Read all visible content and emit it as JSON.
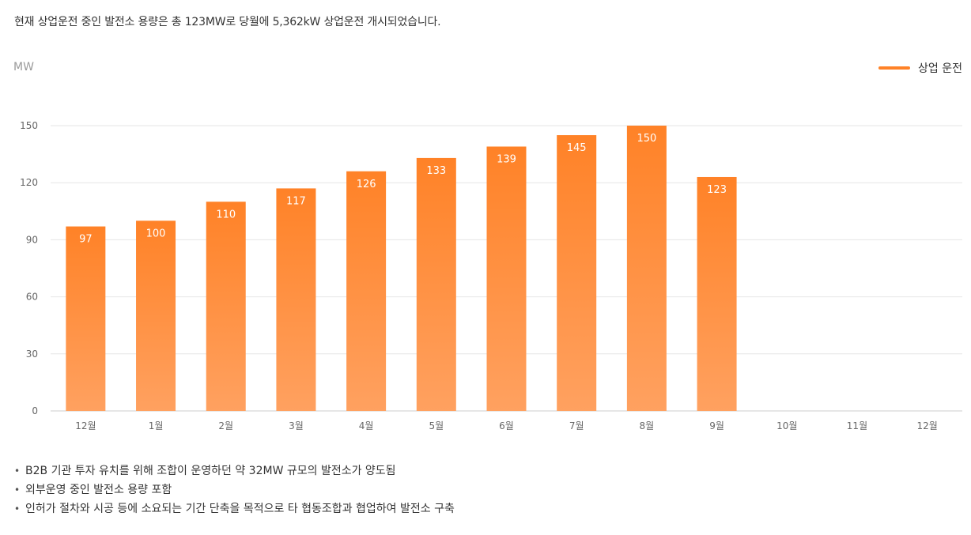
{
  "header": {
    "summary": "현재 상업운전 중인 발전소 용량은 총 123MW로 당월에 5,362kW 상업운전 개시되었습니다."
  },
  "colors": {
    "bar_top": "#ff8227",
    "bar_bottom": "#ffa160",
    "grid": "#e6e6e6",
    "axis_text": "#666666",
    "value_text": "#ffffff"
  },
  "chart_data": {
    "type": "bar",
    "ylabel": "MW",
    "categories": [
      "12월",
      "1월",
      "2월",
      "3월",
      "4월",
      "5월",
      "6월",
      "7월",
      "8월",
      "9월",
      "10월",
      "11월",
      "12월"
    ],
    "series": [
      {
        "name": "상업 운전",
        "values": [
          97,
          100,
          110,
          117,
          126,
          133,
          139,
          145,
          150,
          123,
          null,
          null,
          null
        ]
      }
    ],
    "yticks": [
      0,
      30,
      60,
      90,
      120,
      150
    ],
    "ylim": [
      0,
      150
    ],
    "grid": true,
    "legend_position": "top-right",
    "data_labels": true
  },
  "notes": [
    "B2B 기관 투자 유치를 위해 조합이 운영하던 약 32MW 규모의 발전소가 양도됨",
    "외부운영 중인 발전소 용량 포함",
    "인허가 절차와 시공 등에 소요되는 기간 단축을 목적으로 타 협동조합과 협업하여 발전소 구축"
  ],
  "bullet_symbol": "•"
}
